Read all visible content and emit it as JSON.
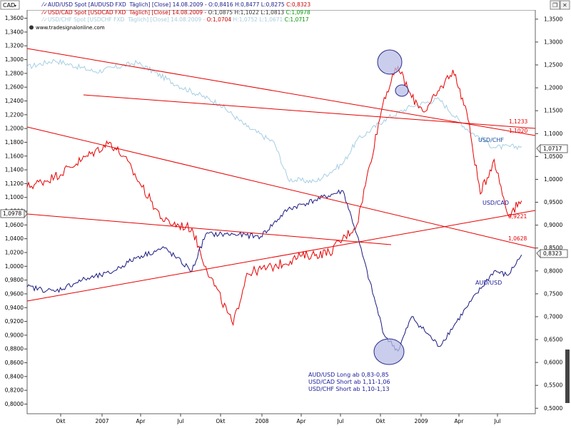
{
  "header": {
    "currency_box": "CAD",
    "legend_lines": [
      {
        "id": "aud",
        "pre": "AUD/USD Spot [AUDUSD FXD  Täglich] [Close] 14.08.2009 - ",
        "o": "O:0,8416",
        "hl": " H:0,8477 L:0,8275 ",
        "c": "C:0,8323",
        "pre_color": "#1a1a8c",
        "o_color": "#1a1a8c",
        "c_color": "#cc0000"
      },
      {
        "id": "cad",
        "pre": "USD/CAD Spot [USDCAD FXD  Täglich] [Close] 14.08.2009 - ",
        "o": "O:1,0875",
        "hl": " H:1,1022 L:1,0813 ",
        "c": "C:1,0978",
        "pre_color": "#cc0000",
        "o_color": "#333333",
        "c_color": "#009900"
      },
      {
        "id": "chf",
        "pre": "USD/CHF Spot [USDCHF FXD  Täglich] [Close] 14.08.2009 - ",
        "o": "O:1,0704",
        "hl": " H:1,0752 L:1,0671 ",
        "c": "C:1,0717",
        "pre_color": "#a9cde0",
        "o_color": "#cc0000",
        "c_color": "#009900"
      }
    ],
    "website": "www.tradesignalonline.com"
  },
  "colors": {
    "aud": "#1a1a80",
    "cad": "#e60000",
    "chf": "#a6cee3",
    "trend": "#e60000",
    "marker_fill": "#b8bde6",
    "marker_stroke": "#2a2a8a",
    "note_text": "#1a1a99"
  },
  "annotations": {
    "series_labels": {
      "chf": "USD/CHF",
      "cad": "USD/CAD",
      "aud": "AUD/USD"
    },
    "level_labels": [
      "1,1233",
      "1,1020",
      "0,9221",
      "1,0628"
    ],
    "right_tags": [
      "1,0717",
      "0,8323"
    ],
    "left_tag": "1,0978",
    "note_lines": [
      "AUD/USD Long ab 0,83-0,85",
      "USD/CAD Short ab 1,11-1,06",
      "USD/CHF Short ab 1,10-1,13"
    ]
  },
  "chart_data": {
    "type": "line",
    "title": "",
    "x_axis": {
      "ticks": [
        "Okt",
        "2007",
        "Apr",
        "Jul",
        "Okt",
        "2008",
        "Apr",
        "Jul",
        "Okt",
        "2009",
        "Apr",
        "Jul"
      ],
      "range": [
        "2006-08",
        "2009-09"
      ]
    },
    "left_axis": {
      "label": "CAD",
      "ticks": [
        "1,3600",
        "1,3400",
        "1,3200",
        "1,3000",
        "1,2800",
        "1,2600",
        "1,2400",
        "1,2200",
        "1,2000",
        "1,1800",
        "1,1600",
        "1,1400",
        "1,1200",
        "1,1000",
        "1,0800",
        "1,0600",
        "1,0400",
        "1,0200",
        "1,0000",
        "0,9800",
        "0,9600",
        "0,9400",
        "0,9200",
        "0,9000",
        "0,8800",
        "0,8600",
        "0,8400",
        "0,8200",
        "0,8000"
      ],
      "range": [
        0.786,
        1.372
      ]
    },
    "right_axis": {
      "ticks": [
        "1,3500",
        "1,3000",
        "1,2500",
        "1,2000",
        "1,1500",
        "1,1000",
        "1,0500",
        "1,0000",
        "0,9500",
        "0,9000",
        "0,8500",
        "0,8000",
        "0,7500",
        "0,7000",
        "0,6500",
        "0,6000",
        "0,5500",
        "0,5000"
      ],
      "range": [
        0.488,
        1.37
      ]
    },
    "series": [
      {
        "name": "USD/CHF",
        "axis": "right",
        "x": [
          "2006-08",
          "2006-10",
          "2007-01",
          "2007-04",
          "2007-07",
          "2007-10",
          "2007-12",
          "2008-02",
          "2008-03",
          "2008-05",
          "2008-07",
          "2008-08",
          "2008-10",
          "2008-12",
          "2009-02",
          "2009-04",
          "2009-06",
          "2009-08"
        ],
        "y": [
          1.245,
          1.26,
          1.235,
          1.255,
          1.205,
          1.165,
          1.115,
          1.08,
          1.0,
          0.995,
          1.035,
          1.085,
          1.13,
          1.16,
          1.175,
          1.11,
          1.07,
          1.072
        ]
      },
      {
        "name": "USD/CAD",
        "axis": "left",
        "x": [
          "2006-08",
          "2006-10",
          "2006-12",
          "2007-02",
          "2007-03",
          "2007-05",
          "2007-06",
          "2007-08",
          "2007-09",
          "2007-11",
          "2007-12",
          "2008-02",
          "2008-04",
          "2008-06",
          "2008-08",
          "2008-10",
          "2008-11",
          "2008-12",
          "2009-01",
          "2009-02",
          "2009-03",
          "2009-04",
          "2009-05",
          "2009-06",
          "2009-07",
          "2009-08"
        ],
        "y": [
          1.115,
          1.13,
          1.155,
          1.18,
          1.16,
          1.095,
          1.065,
          1.055,
          1.0,
          0.915,
          0.99,
          1.0,
          1.015,
          1.02,
          1.06,
          1.245,
          1.29,
          1.245,
          1.225,
          1.255,
          1.285,
          1.225,
          1.105,
          1.155,
          1.075,
          1.095
        ]
      },
      {
        "name": "AUD/USD",
        "axis": "right",
        "x": [
          "2006-08",
          "2006-10",
          "2006-12",
          "2007-02",
          "2007-04",
          "2007-06",
          "2007-08",
          "2007-09",
          "2007-11",
          "2008-01",
          "2008-03",
          "2008-05",
          "2008-07",
          "2008-08",
          "2008-10",
          "2008-11",
          "2008-12",
          "2009-02",
          "2009-04",
          "2009-06",
          "2009-07",
          "2009-08"
        ],
        "y": [
          0.765,
          0.755,
          0.78,
          0.795,
          0.83,
          0.85,
          0.8,
          0.88,
          0.88,
          0.875,
          0.935,
          0.955,
          0.975,
          0.88,
          0.66,
          0.625,
          0.7,
          0.635,
          0.72,
          0.8,
          0.79,
          0.835
        ]
      }
    ],
    "grid": false,
    "legend_placement": "top-left"
  }
}
